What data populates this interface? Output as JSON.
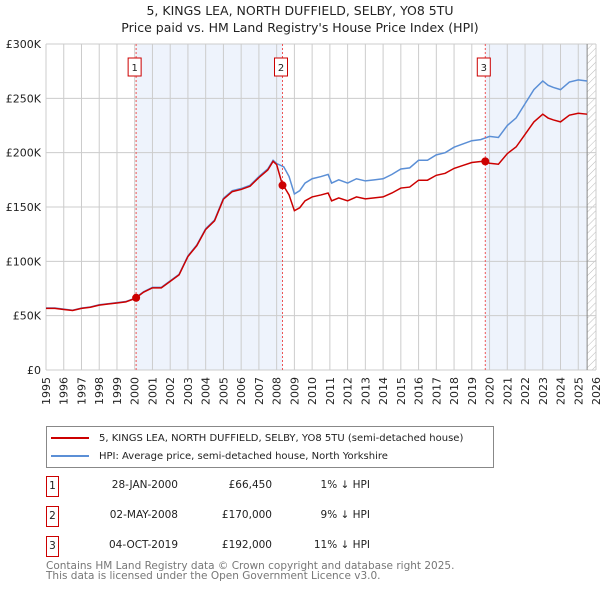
{
  "title": "5, KINGS LEA, NORTH DUFFIELD, SELBY, YO8 5TU",
  "subtitle": "Price paid vs. HM Land Registry's House Price Index (HPI)",
  "chart_data": {
    "type": "line",
    "xlim": [
      1995,
      2026
    ],
    "ylim": [
      0,
      300000
    ],
    "y_ticks": [
      {
        "v": 0,
        "label": "£0"
      },
      {
        "v": 50000,
        "label": "£50K"
      },
      {
        "v": 100000,
        "label": "£100K"
      },
      {
        "v": 150000,
        "label": "£150K"
      },
      {
        "v": 200000,
        "label": "£200K"
      },
      {
        "v": 250000,
        "label": "£250K"
      },
      {
        "v": 300000,
        "label": "£300K"
      }
    ],
    "x_ticks": [
      "1995",
      "1996",
      "1997",
      "1998",
      "1999",
      "2000",
      "2001",
      "2002",
      "2003",
      "2004",
      "2005",
      "2006",
      "2007",
      "2008",
      "2009",
      "2010",
      "2011",
      "2012",
      "2013",
      "2014",
      "2015",
      "2016",
      "2017",
      "2018",
      "2019",
      "2020",
      "2021",
      "2022",
      "2023",
      "2024",
      "2025",
      "2026"
    ],
    "grid": true,
    "shaded_ranges": [
      [
        2000.08,
        2008.33
      ],
      [
        2019.76,
        2025.5
      ]
    ],
    "hatched_from": 2025.5,
    "series": [
      {
        "name": "HPI",
        "color": "#5b8fd6",
        "x": [
          1995,
          1995.5,
          1996,
          1996.5,
          1997,
          1997.5,
          1998,
          1998.5,
          1999,
          1999.5,
          2000,
          2000.5,
          2001,
          2001.5,
          2002,
          2002.5,
          2003,
          2003.5,
          2004,
          2004.5,
          2005,
          2005.5,
          2006,
          2006.5,
          2007,
          2007.5,
          2007.8,
          2008,
          2008.4,
          2008.7,
          2009,
          2009.3,
          2009.6,
          2010,
          2010.5,
          2010.9,
          2011.1,
          2011.5,
          2012,
          2012.5,
          2013,
          2013.5,
          2014,
          2014.5,
          2015,
          2015.5,
          2016,
          2016.5,
          2017,
          2017.5,
          2018,
          2018.5,
          2019,
          2019.5,
          2020,
          2020.5,
          2021,
          2021.5,
          2022,
          2022.5,
          2023,
          2023.3,
          2023.6,
          2024,
          2024.5,
          2025,
          2025.5
        ],
        "y": [
          57000,
          57000,
          56000,
          55000,
          57000,
          58000,
          60000,
          61000,
          62000,
          63000,
          66000,
          72000,
          76000,
          76000,
          82000,
          88000,
          105000,
          115000,
          130000,
          138000,
          158000,
          165000,
          167000,
          170000,
          178000,
          185000,
          193000,
          190000,
          187000,
          178000,
          162000,
          165000,
          172000,
          176000,
          178000,
          180000,
          172000,
          175000,
          172000,
          176000,
          174000,
          175000,
          176000,
          180000,
          185000,
          186000,
          193000,
          193000,
          198000,
          200000,
          205000,
          208000,
          211000,
          212000,
          215000,
          214000,
          225000,
          232000,
          245000,
          258000,
          266000,
          262000,
          260000,
          258000,
          265000,
          267000,
          266000
        ]
      },
      {
        "name": "Price paid",
        "color": "#cc0000"
      }
    ],
    "sales": [
      {
        "n": "1",
        "x": 2000.08,
        "y": 66450
      },
      {
        "n": "2",
        "x": 2008.33,
        "y": 170000
      },
      {
        "n": "3",
        "x": 2019.76,
        "y": 192000
      }
    ]
  },
  "legend": {
    "property": "5, KINGS LEA, NORTH DUFFIELD, SELBY, YO8 5TU (semi-detached house)",
    "hpi": "HPI: Average price, semi-detached house, North Yorkshire"
  },
  "transactions": [
    {
      "n": "1",
      "date": "28-JAN-2000",
      "price": "£66,450",
      "delta": "1% ↓ HPI"
    },
    {
      "n": "2",
      "date": "02-MAY-2008",
      "price": "£170,000",
      "delta": "9% ↓ HPI"
    },
    {
      "n": "3",
      "date": "04-OCT-2019",
      "price": "£192,000",
      "delta": "11% ↓ HPI"
    }
  ],
  "footer": [
    "Contains HM Land Registry data © Crown copyright and database right 2025.",
    "This data is licensed under the Open Government Licence v3.0."
  ]
}
